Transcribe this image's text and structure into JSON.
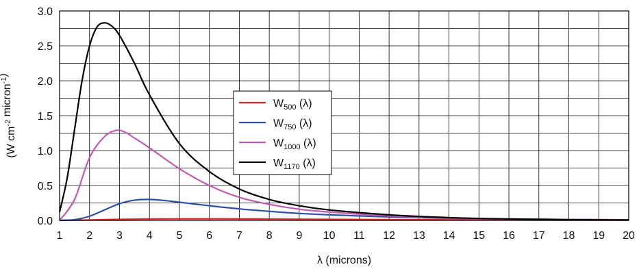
{
  "chart_data": {
    "type": "line",
    "title": "",
    "xlabel": "λ (microns)",
    "ylabel": "(W cm⁻² micron⁻¹)",
    "xlim": [
      1,
      20
    ],
    "ylim": [
      0,
      3.0
    ],
    "x_ticks": [
      "1",
      "2",
      "3",
      "4",
      "5",
      "6",
      "7",
      "8",
      "9",
      "10",
      "11",
      "12",
      "13",
      "14",
      "15",
      "16",
      "17",
      "18",
      "19",
      "20"
    ],
    "y_ticks": [
      "0.0",
      "0.5",
      "1.0",
      "1.5",
      "2.0",
      "2.5",
      "3.0"
    ],
    "grid": true,
    "legend_position": "center",
    "series": [
      {
        "name": "W500 (λ)",
        "base": "W",
        "sub": "500",
        "suffix": " (λ)",
        "color": "#d62728",
        "x": [
          1,
          2,
          3,
          4,
          5,
          6,
          7,
          8,
          10,
          12,
          15,
          20
        ],
        "y": [
          0.0,
          0.006,
          0.015,
          0.02,
          0.022,
          0.022,
          0.021,
          0.019,
          0.015,
          0.011,
          0.007,
          0.003
        ]
      },
      {
        "name": "W750 (λ)",
        "base": "W",
        "sub": "750",
        "suffix": " (λ)",
        "color": "#2f4fa6",
        "x": [
          1,
          1.5,
          2,
          2.5,
          3,
          3.5,
          4,
          4.5,
          5,
          6,
          7,
          8,
          9,
          10,
          12,
          14,
          16,
          20
        ],
        "y": [
          0.0,
          0.01,
          0.06,
          0.15,
          0.24,
          0.29,
          0.3,
          0.285,
          0.26,
          0.21,
          0.165,
          0.13,
          0.1,
          0.08,
          0.05,
          0.03,
          0.02,
          0.008
        ]
      },
      {
        "name": "W1000 (λ)",
        "base": "W",
        "sub": "1000",
        "suffix": " (λ)",
        "color": "#c05ab0",
        "x": [
          1,
          1.5,
          2,
          2.5,
          2.9,
          3.2,
          3.5,
          4,
          5,
          6,
          7,
          8,
          9,
          10,
          12,
          14,
          16,
          20
        ],
        "y": [
          0.0,
          0.3,
          0.9,
          1.2,
          1.29,
          1.26,
          1.18,
          1.04,
          0.74,
          0.5,
          0.33,
          0.23,
          0.16,
          0.12,
          0.065,
          0.035,
          0.02,
          0.008
        ]
      },
      {
        "name": "W1170 (λ)",
        "base": "W",
        "sub": "1170",
        "suffix": " (λ)",
        "color": "#000000",
        "x": [
          1,
          1.25,
          1.5,
          1.75,
          2,
          2.25,
          2.5,
          2.75,
          3,
          3.5,
          4,
          5,
          6,
          7,
          8,
          9,
          10,
          12,
          14,
          16,
          18,
          20
        ],
        "y": [
          0.12,
          0.6,
          1.3,
          2.0,
          2.5,
          2.77,
          2.83,
          2.78,
          2.65,
          2.25,
          1.8,
          1.1,
          0.7,
          0.45,
          0.3,
          0.21,
          0.15,
          0.08,
          0.04,
          0.02,
          0.01,
          0.005
        ]
      }
    ]
  }
}
